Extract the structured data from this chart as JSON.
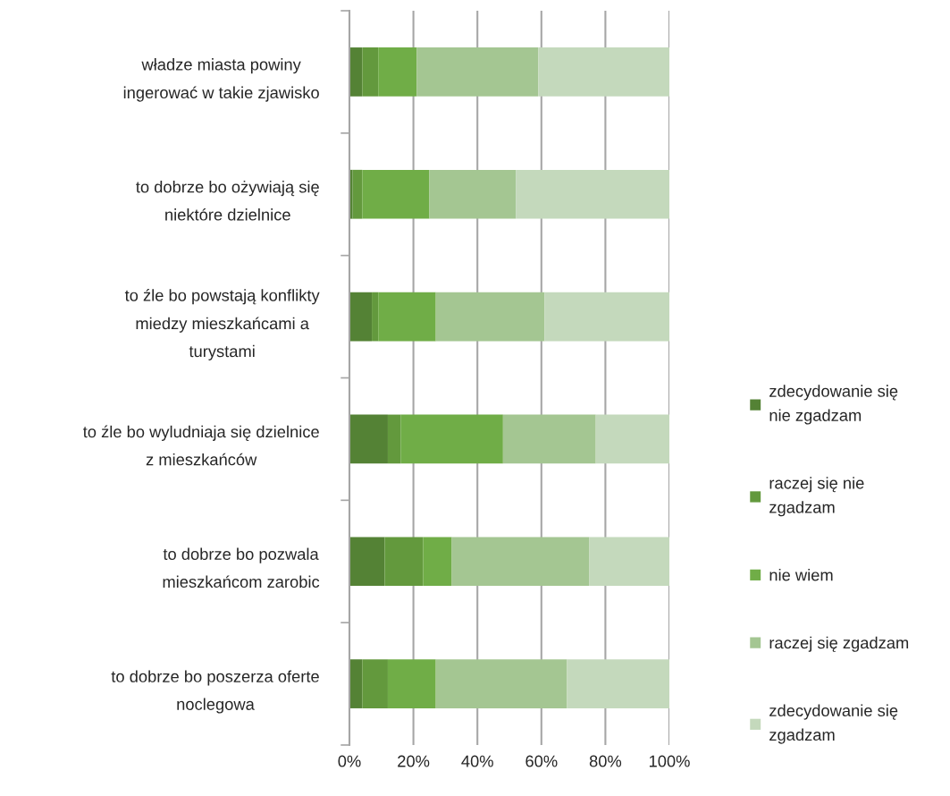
{
  "chart_data": {
    "type": "bar",
    "orientation": "horizontal",
    "stacked": true,
    "categories": [
      "władze miasta powiny\ningerować w takie zjawisko",
      "to dobrze bo ożywiają się\nniektóre dzielnice",
      "to źle bo powstają konflikty\nmiedzy mieszkańcami a\nturystami",
      "to źle bo wyludniaja się dzielnice\nz mieszkańców",
      "to dobrze bo pozwala\nmieszkańcom zarobic",
      "to dobrze bo poszerza oferte\nnoclegowa"
    ],
    "series": [
      {
        "name": "zdecydowanie się\nnie zgadzam",
        "color": "#548235",
        "values": [
          4,
          1,
          7,
          12,
          11,
          4
        ]
      },
      {
        "name": "raczej się nie\nzgadzam",
        "color": "#63993d",
        "values": [
          5,
          3,
          2,
          4,
          12,
          8
        ]
      },
      {
        "name": "nie wiem",
        "color": "#70ad47",
        "values": [
          12,
          21,
          18,
          32,
          9,
          15
        ]
      },
      {
        "name": "raczej się zgadzam",
        "color": "#a4c692",
        "values": [
          38,
          27,
          34,
          29,
          43,
          41
        ]
      },
      {
        "name": "zdecydowanie się\nzgadzam",
        "color": "#c4d9bc",
        "values": [
          41,
          48,
          39,
          23,
          25,
          32
        ]
      }
    ],
    "xlim": [
      0,
      100
    ],
    "xticks": [
      {
        "value": 0,
        "label": "0%"
      },
      {
        "value": 20,
        "label": "20%"
      },
      {
        "value": 40,
        "label": "40%"
      },
      {
        "value": 60,
        "label": "60%"
      },
      {
        "value": 80,
        "label": "80%"
      },
      {
        "value": 100,
        "label": "100%"
      }
    ],
    "grid": "x",
    "legend": "right"
  }
}
